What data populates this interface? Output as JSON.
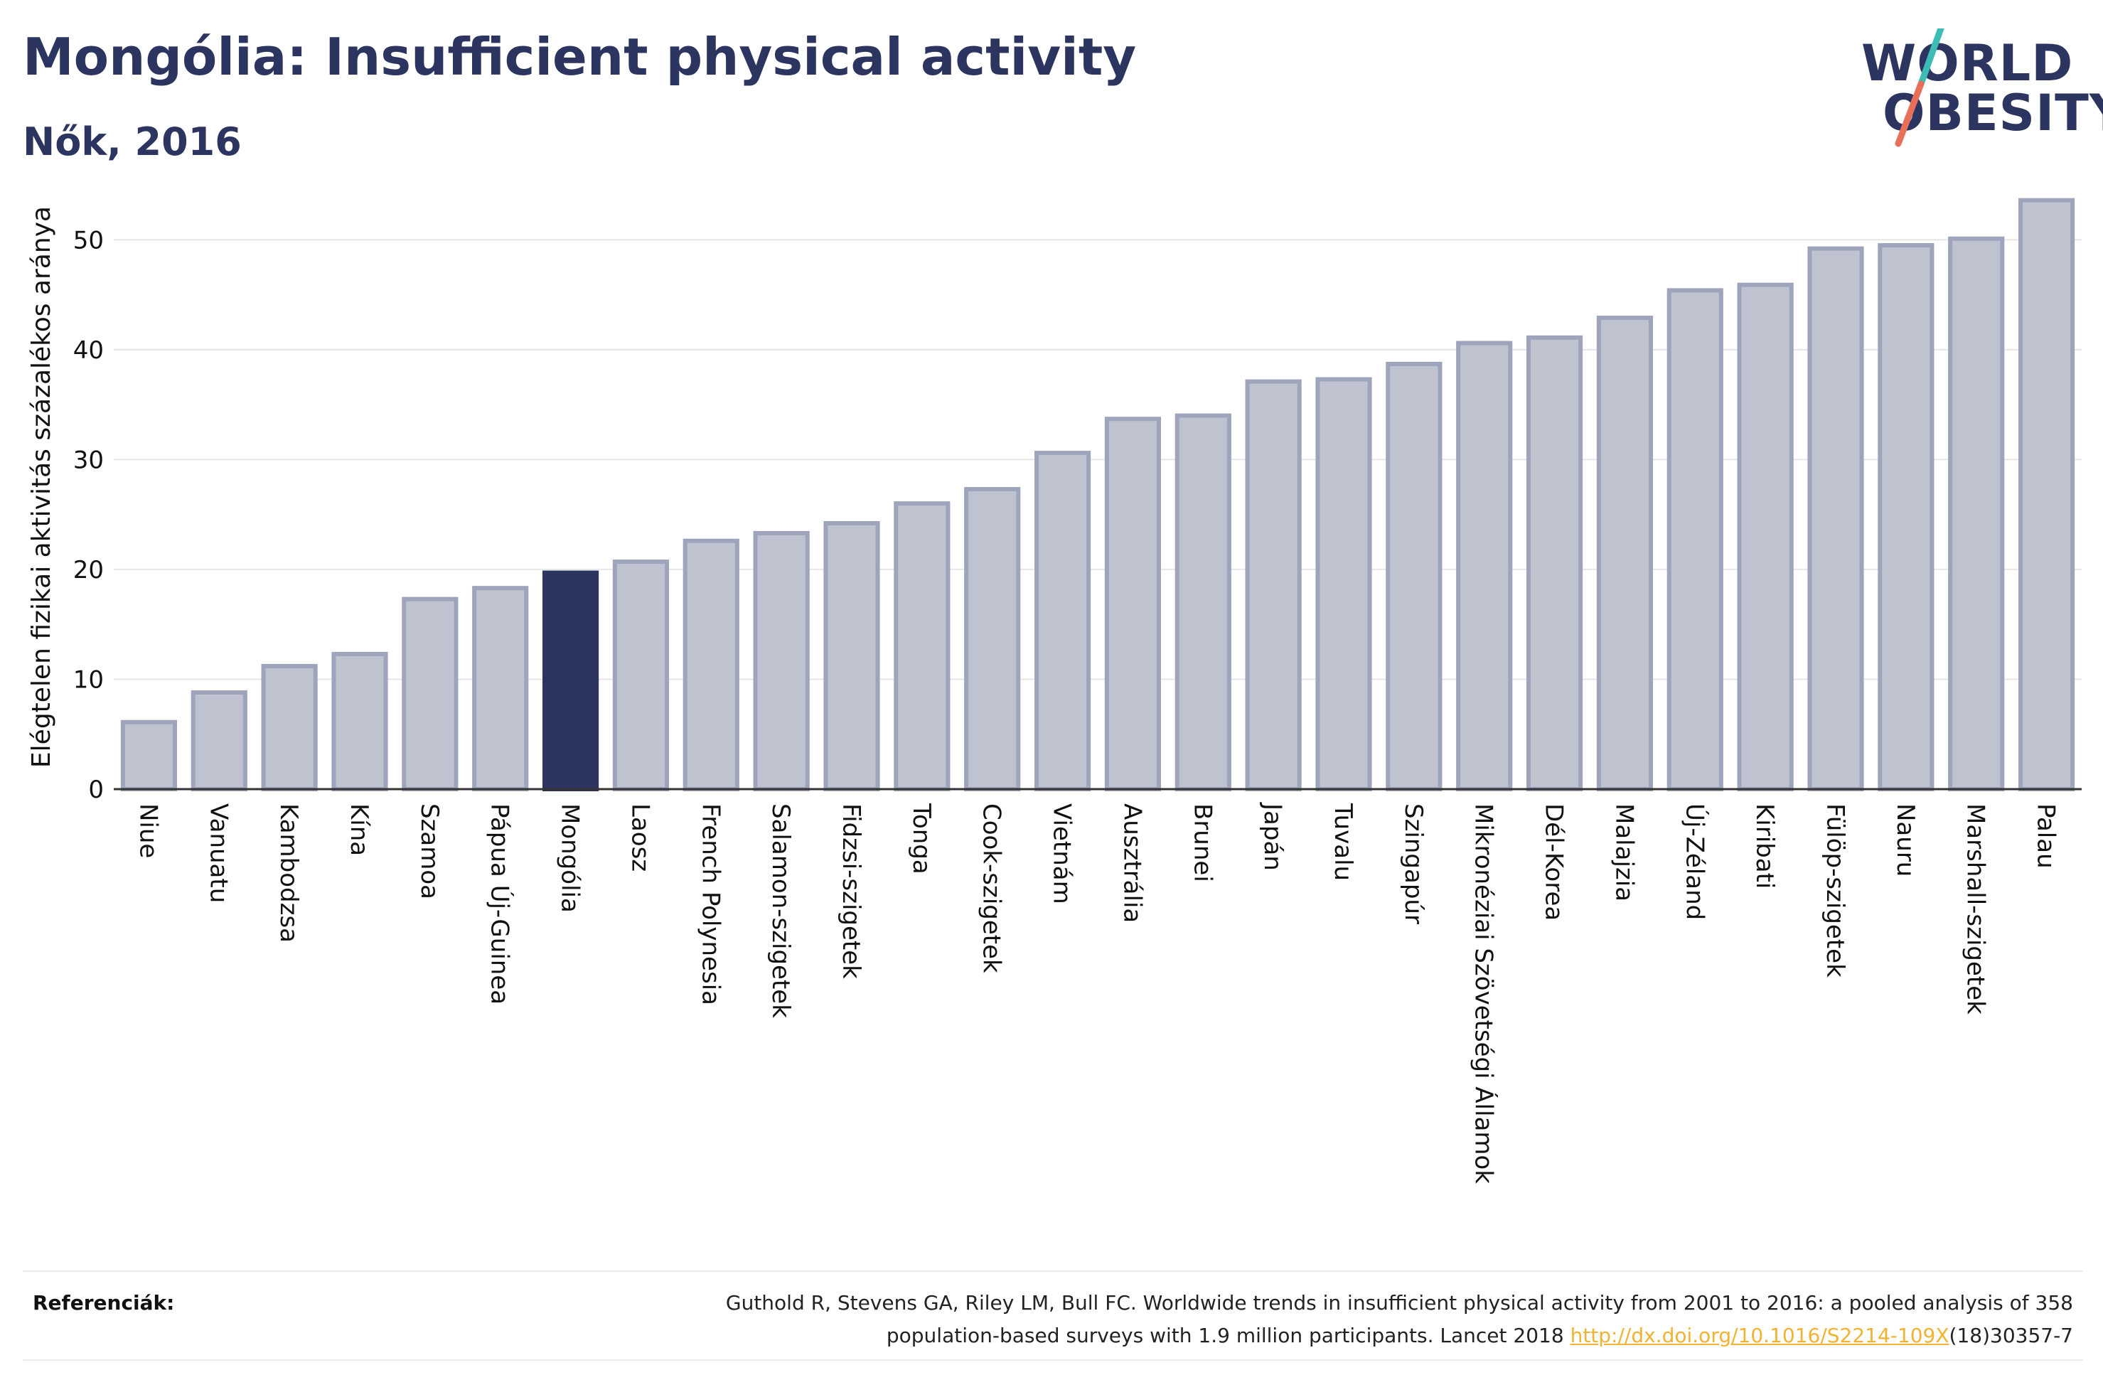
{
  "title": "Mongólia: Insufficient physical activity",
  "subtitle": "Nők, 2016",
  "logo": {
    "line1": "WORLD",
    "line2": "OBESITY",
    "accent_top": "#3cbcb4",
    "accent_bottom": "#e8705a"
  },
  "references": {
    "label": "Referenciák:",
    "text_line1": "Guthold R, Stevens GA, Riley LM, Bull FC. Worldwide trends in insufficient physical activity from 2001 to 2016: a pooled analysis of 358",
    "text_line2_pre": "population-based surveys with 1.9 million participants. Lancet 2018 ",
    "link": "http://dx.doi.org/10.1016/S2214-109X",
    "text_line2_post": "(18)30357-7"
  },
  "colors": {
    "bar": "#bfc3d0",
    "bar_border": "#9ea4bb",
    "highlight": "#2b3560",
    "axis": "#333333",
    "grid": "#e6e6e6"
  },
  "chart_data": {
    "type": "bar",
    "title": "Mongólia: Insufficient physical activity",
    "subtitle": "Nők, 2016",
    "xlabel": "",
    "ylabel": "Elégtelen fizikai aktivitás százalékos aránya",
    "ylim": [
      0,
      55
    ],
    "yticks": [
      0,
      10,
      20,
      30,
      40,
      50
    ],
    "grid": true,
    "highlight": "Mongólia",
    "categories": [
      "Niue",
      "Vanuatu",
      "Kambodzsa",
      "Kína",
      "Szamoa",
      "Pápua Új-Guinea",
      "Mongólia",
      "Laosz",
      "French Polynesia",
      "Salamon-szigetek",
      "Fidzsi-szigetek",
      "Tonga",
      "Cook-szigetek",
      "Vietnám",
      "Ausztrália",
      "Brunei",
      "Japán",
      "Tuvalu",
      "Szingapúr",
      "Mikronéziai Szövetségi Államok",
      "Dél-Korea",
      "Malajzia",
      "Új-Zéland",
      "Kiribati",
      "Fülöp-szigetek",
      "Nauru",
      "Marshall-szigetek",
      "Palau"
    ],
    "values": [
      6.1,
      8.8,
      11.2,
      12.3,
      17.3,
      18.3,
      19.7,
      20.7,
      22.6,
      23.3,
      24.2,
      26.0,
      27.3,
      30.6,
      33.7,
      34.0,
      37.1,
      37.3,
      38.7,
      40.6,
      41.1,
      42.9,
      45.4,
      45.9,
      49.2,
      49.5,
      50.1,
      53.6
    ]
  }
}
